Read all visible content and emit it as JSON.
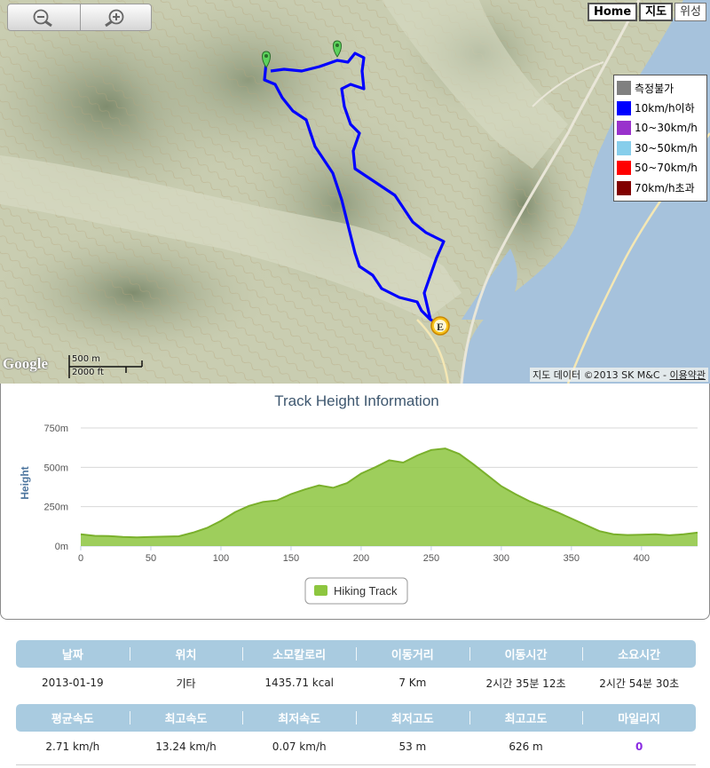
{
  "map": {
    "zoom_out_label": "−",
    "zoom_in_label": "+",
    "map_types": [
      {
        "label": "Home",
        "active": true
      },
      {
        "label": "지도",
        "active": true
      },
      {
        "label": "위성",
        "active": false
      }
    ],
    "legend": [
      {
        "label": "측정불가",
        "color": "#808080"
      },
      {
        "label": "10km/h이하",
        "color": "#0000ff"
      },
      {
        "label": "10~30km/h",
        "color": "#9932cc"
      },
      {
        "label": "30~50km/h",
        "color": "#87ceeb"
      },
      {
        "label": "50~70km/h",
        "color": "#ff0000"
      },
      {
        "label": "70km/h초과",
        "color": "#800000"
      }
    ],
    "google_logo": "Google",
    "scale_m": "500 m",
    "scale_ft": "2000 ft",
    "attribution_prefix": "지도 데이터 ©2013 SK M&C - ",
    "attribution_link": "이용약관",
    "end_marker_label": "E",
    "track_color": "#0000ff",
    "water_color": "#a6c2dc"
  },
  "chart_data": {
    "type": "area",
    "title": "Track Height Information",
    "xlabel": "",
    "ylabel": "Height",
    "xlim": [
      0,
      440
    ],
    "ylim": [
      0,
      750
    ],
    "x_ticks": [
      "0",
      "50",
      "100",
      "150",
      "200",
      "250",
      "300",
      "350",
      "400"
    ],
    "y_ticks": [
      "0m",
      "250m",
      "500m",
      "750m"
    ],
    "grid": true,
    "legend_position": "bottom-center",
    "series": [
      {
        "name": "Hiking Track",
        "color": "#8dc63f",
        "x": [
          0,
          10,
          20,
          30,
          40,
          50,
          60,
          70,
          80,
          90,
          100,
          110,
          120,
          130,
          140,
          150,
          160,
          170,
          180,
          190,
          200,
          210,
          220,
          230,
          240,
          250,
          260,
          270,
          280,
          290,
          300,
          310,
          320,
          330,
          340,
          350,
          360,
          370,
          380,
          390,
          400,
          410,
          420,
          430,
          440
        ],
        "y": [
          75,
          65,
          63,
          58,
          55,
          58,
          60,
          62,
          85,
          115,
          160,
          215,
          255,
          280,
          290,
          330,
          360,
          385,
          370,
          400,
          460,
          500,
          545,
          530,
          575,
          610,
          620,
          585,
          520,
          450,
          380,
          330,
          285,
          250,
          215,
          175,
          135,
          95,
          75,
          70,
          72,
          75,
          68,
          75,
          85
        ]
      }
    ]
  },
  "stats": {
    "headers1": [
      "날짜",
      "위치",
      "소모칼로리",
      "이동거리",
      "이동시간",
      "소요시간"
    ],
    "values1": [
      "2013-01-19",
      "기타",
      "1435.71 kcal",
      "7 Km",
      "2시간 35분 12초",
      "2시간 54분 30초"
    ],
    "headers2": [
      "평균속도",
      "최고속도",
      "최저속도",
      "최저고도",
      "최고고도",
      "마일리지"
    ],
    "values2": [
      "2.71 km/h",
      "13.24 km/h",
      "0.07 km/h",
      "53 m",
      "626 m",
      "0"
    ]
  }
}
